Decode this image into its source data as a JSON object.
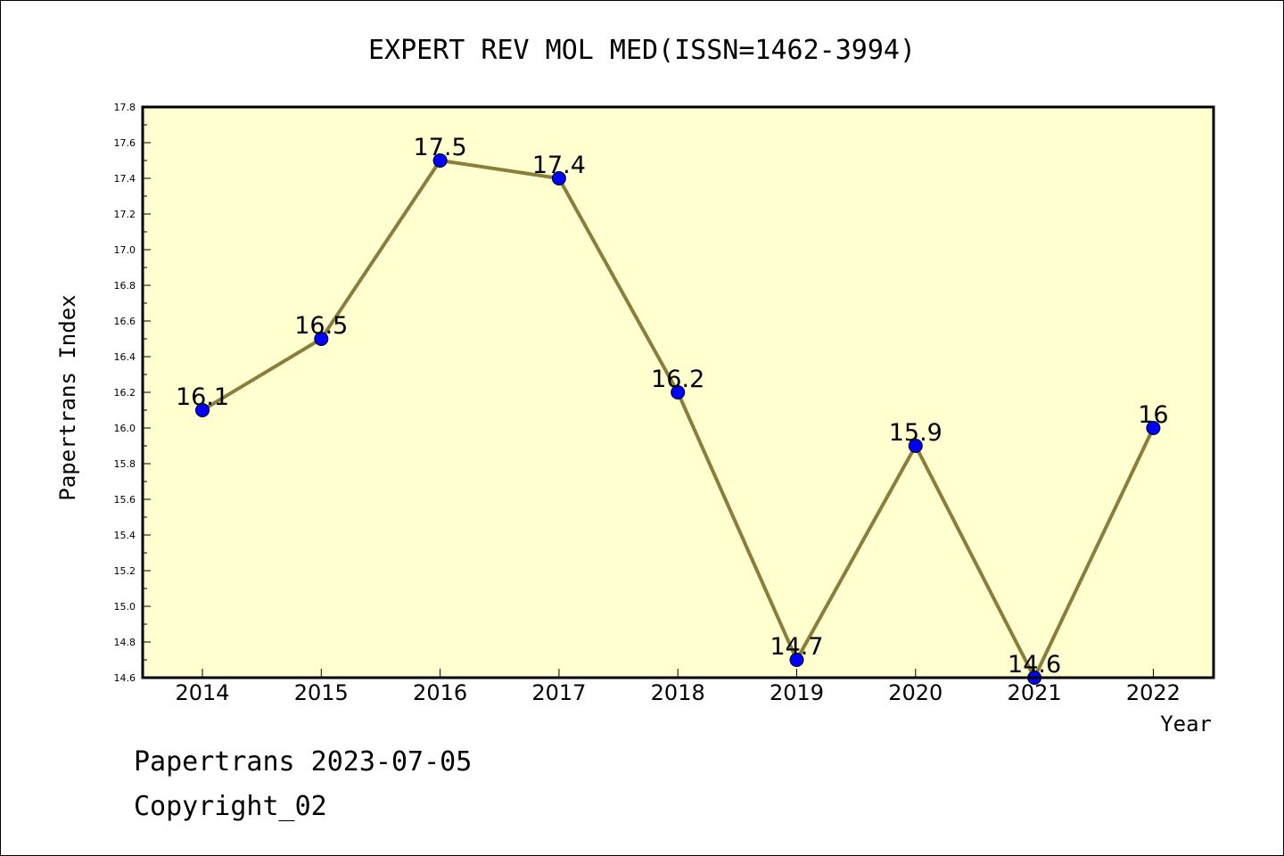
{
  "chart_data": {
    "type": "line",
    "title": "EXPERT REV MOL MED(ISSN=1462-3994)",
    "xlabel": "Year",
    "ylabel": "Papertrans Index",
    "x": [
      "2014",
      "2015",
      "2016",
      "2017",
      "2018",
      "2019",
      "2020",
      "2021",
      "2022"
    ],
    "values": [
      16.1,
      16.5,
      17.5,
      17.4,
      16.2,
      14.7,
      15.9,
      14.6,
      16.0
    ],
    "data_labels": [
      "16.1",
      "16.5",
      "17.5",
      "17.4",
      "16.2",
      "14.7",
      "15.9",
      "14.6",
      "16"
    ],
    "ylim": [
      14.6,
      17.8
    ],
    "yticks": [
      "14.6",
      "14.8",
      "15.0",
      "15.2",
      "15.4",
      "15.6",
      "15.8",
      "16.0",
      "16.2",
      "16.4",
      "16.6",
      "16.8",
      "17.0",
      "17.2",
      "17.4",
      "17.6",
      "17.8"
    ],
    "grid": false,
    "legend": "none",
    "colors": {
      "background": "#ffffd0",
      "line": "#8b7d3a",
      "marker": "#0000ff"
    }
  },
  "footer": {
    "line1": "Papertrans 2023-07-05",
    "line2": "Copyright_02"
  }
}
